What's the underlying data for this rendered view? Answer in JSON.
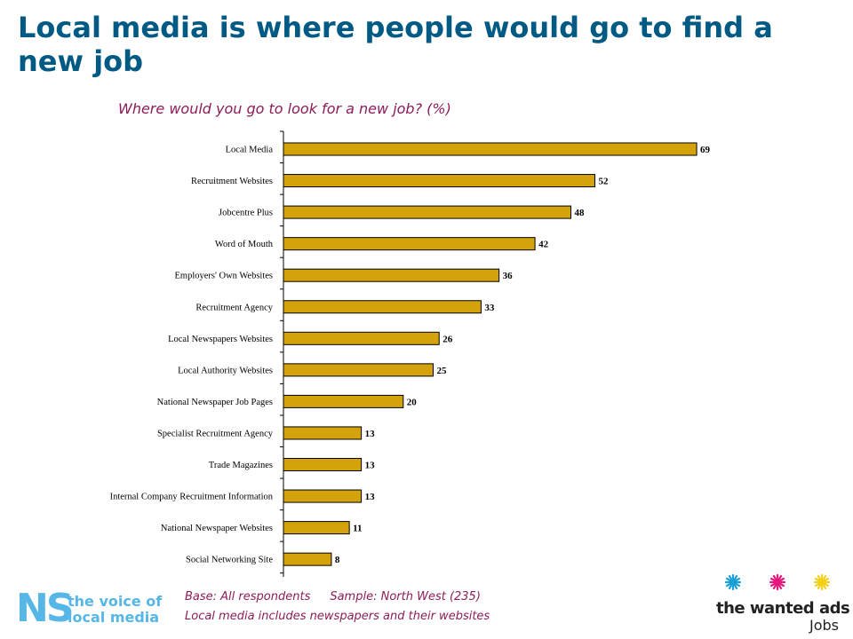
{
  "title": "Local media is where people would go to find a new job",
  "chart_data": {
    "type": "bar",
    "orientation": "horizontal",
    "title": "Where would you go to look for a new job? (%)",
    "categories": [
      "Local Media",
      "Recruitment Websites",
      "Jobcentre Plus",
      "Word of Mouth",
      "Employers' Own Websites",
      "Recruitment Agency",
      "Local Newspapers Websites",
      "Local Authority Websites",
      "National Newspaper Job Pages",
      "Specialist Recruitment Agency",
      "Trade Magazines",
      "Internal Company Recruitment Information",
      "National Newspaper Websites",
      "Social Networking Site"
    ],
    "values": [
      69,
      52,
      48,
      42,
      36,
      33,
      26,
      25,
      20,
      13,
      13,
      13,
      11,
      8
    ],
    "bar_color": "#d4a20a",
    "xlim": [
      0,
      75
    ],
    "grid": false,
    "legend": "none"
  },
  "footer": {
    "base": "Base: All respondents",
    "sample": "Sample: North West (235)",
    "note": "Local media includes newspapers and their websites"
  },
  "logo_left": {
    "mark": "NS",
    "line1": "the voice of",
    "line2": "local media",
    "color": "#56b7e6"
  },
  "logo_right": {
    "name": "the wanted ads",
    "sub": "Jobs",
    "star_colors": [
      "#1aa0d8",
      "#e6177e",
      "#f2d019"
    ]
  }
}
